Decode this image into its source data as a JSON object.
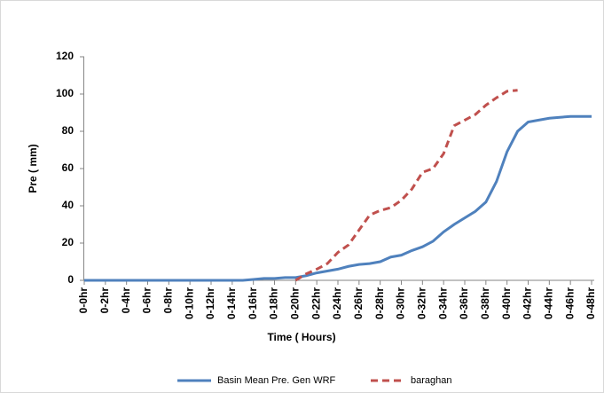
{
  "chart_data": {
    "type": "line",
    "x_label": "Time ( Hours)",
    "y_label": "Pre ( mm)",
    "categories": [
      "0-0hr",
      null,
      "0-2hr",
      null,
      "0-4hr",
      null,
      "0-6hr",
      null,
      "0-8hr",
      null,
      "0-10hr",
      null,
      "0-12hr",
      null,
      "0-14hr",
      null,
      "0-16hr",
      null,
      "0-18hr",
      null,
      "0-20hr",
      null,
      "0-22hr",
      null,
      "0-24hr",
      null,
      "0-26hr",
      null,
      "0-28hr",
      null,
      "0-30hr",
      null,
      "0-32hr",
      null,
      "0-34hr",
      null,
      "0-36hr",
      null,
      "0-38hr",
      null,
      "0-40hr",
      null,
      "0-42hr",
      null,
      "0-44hr",
      null,
      "0-46hr",
      null,
      "0-48hr"
    ],
    "series": [
      {
        "name": "Basin Mean Pre. Gen WRF",
        "color": "#4f81bd",
        "dash": false,
        "values": [
          0,
          0,
          0,
          0,
          0,
          0,
          0,
          0,
          0,
          0,
          0,
          0,
          0,
          0,
          0,
          0,
          0.5,
          1,
          1,
          1.5,
          1.5,
          2.5,
          4,
          5,
          6,
          7.5,
          8.5,
          9,
          10,
          12.5,
          13.5,
          16,
          18,
          21,
          26,
          30,
          33.5,
          37,
          42,
          53,
          69,
          80,
          85,
          86,
          87,
          87.5,
          88,
          88,
          88
        ]
      },
      {
        "name": "baraghan",
        "color": "#c0504d",
        "dash": true,
        "values": [
          null,
          null,
          null,
          null,
          null,
          null,
          null,
          null,
          null,
          null,
          null,
          null,
          null,
          null,
          null,
          null,
          null,
          null,
          null,
          null,
          0,
          3.5,
          6,
          9,
          15,
          19,
          27,
          35,
          37.5,
          39,
          43,
          49,
          58,
          60,
          68,
          83,
          86,
          89,
          94,
          98,
          101.5,
          102,
          null,
          null,
          null,
          null,
          null,
          null,
          null
        ]
      }
    ],
    "ylim": [
      0,
      120
    ],
    "yticks": [
      0,
      20,
      40,
      60,
      80,
      100,
      120
    ],
    "grid": false,
    "legend": "bottom"
  }
}
